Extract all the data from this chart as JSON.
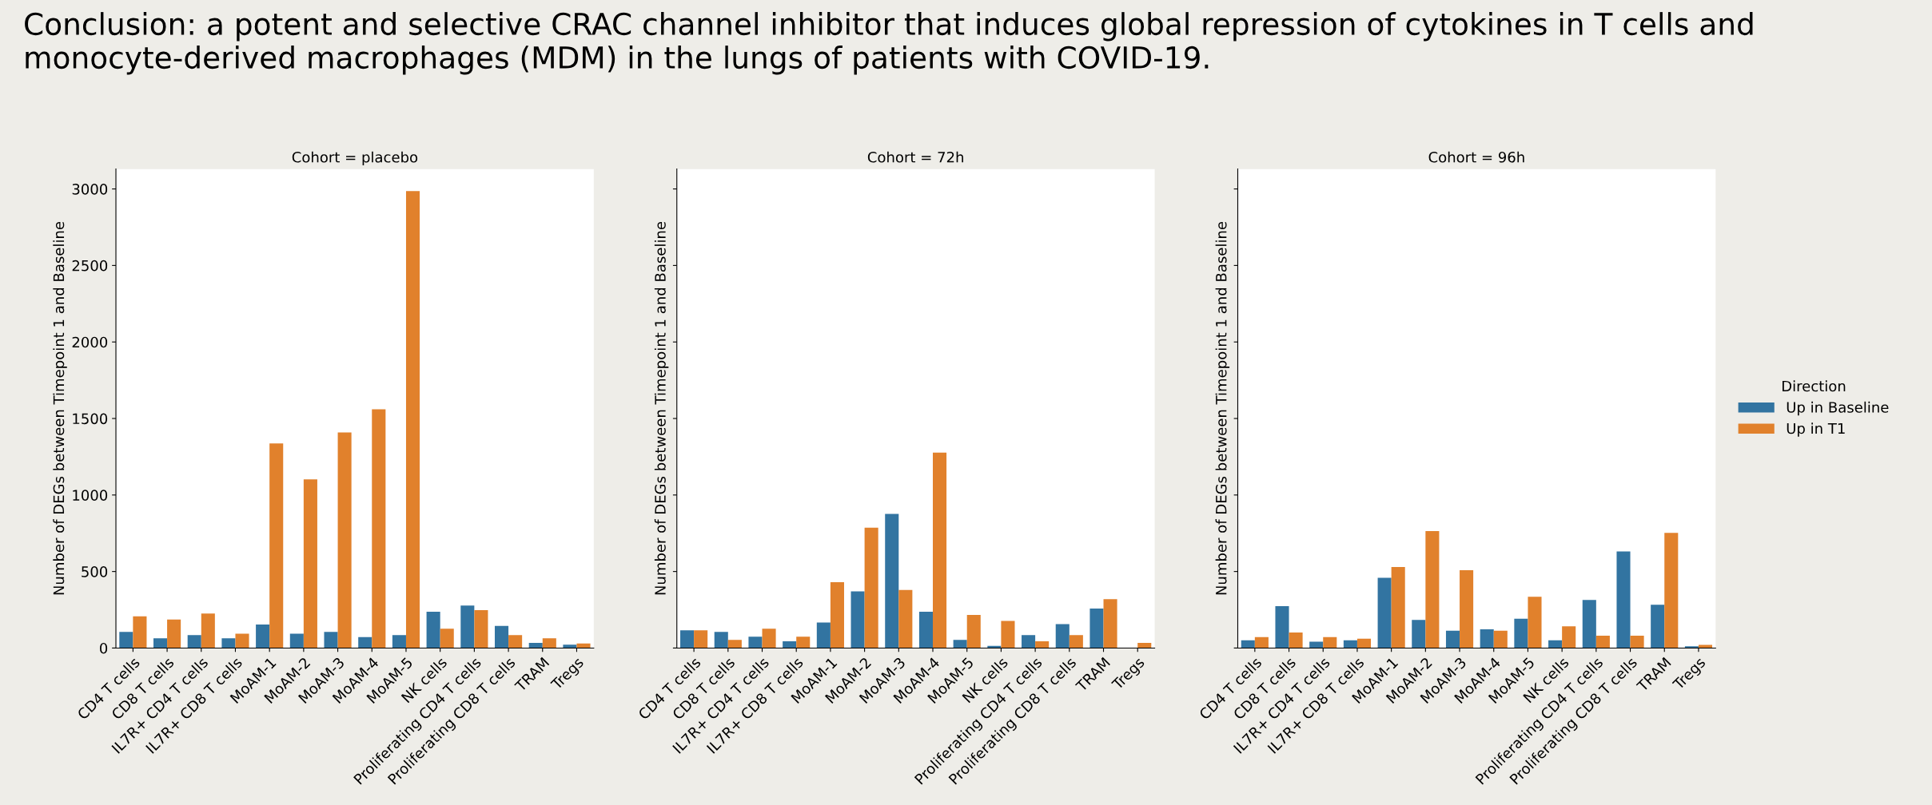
{
  "chart_data": [
    {
      "type": "bar",
      "title": "Cohort = placebo",
      "ylabel": "Number of DEGs between Timepoint 1 and Baseline",
      "legend_title": "Direction",
      "annotations": [
        "Conclusion: a potent and selective CRAC channel inhibitor that induces global repression of cytokines in T cells and monocyte-derived macrophages (MDM) in the lungs of patients with COVID-19."
      ],
      "categories": [
        "CD4 T cells",
        "CD8 T cells",
        "IL7R+ CD4 T cells",
        "IL7R+ CD8 T cells",
        "MoAM-1",
        "MoAM-2",
        "MoAM-3",
        "MoAM-4",
        "MoAM-5",
        "NK cells",
        "Proliferating CD4 T cells",
        "Proliferating CD8 T cells",
        "TRAM",
        "Tregs"
      ],
      "series": [
        {
          "name": "Up in Baseline",
          "color": "#3274a1",
          "values": [
            105,
            63,
            84,
            63,
            153,
            93,
            105,
            72,
            84,
            237,
            277,
            144,
            33,
            22
          ]
        },
        {
          "name": "Up in T1",
          "color": "#e1812c",
          "values": [
            207,
            186,
            226,
            93,
            1337,
            1102,
            1409,
            1560,
            2986,
            126,
            247,
            84,
            63,
            30
          ]
        }
      ],
      "ylim": [
        0,
        3130
      ],
      "yticks": [
        0,
        500,
        1000,
        1500,
        2000,
        2500,
        3000
      ],
      "grid": false,
      "legend": "right"
    },
    {
      "type": "bar",
      "title": "Cohort = 72h",
      "ylabel": "Number of DEGs between Timepoint 1 and Baseline",
      "categories": [
        "CD4 T cells",
        "CD8 T cells",
        "IL7R+ CD4 T cells",
        "IL7R+ CD8 T cells",
        "MoAM-1",
        "MoAM-2",
        "MoAM-3",
        "MoAM-4",
        "MoAM-5",
        "NK cells",
        "Proliferating CD4 T cells",
        "Proliferating CD8 T cells",
        "TRAM",
        "Tregs"
      ],
      "series": [
        {
          "color": "#3274a1",
          "values": [
            116,
            105,
            74,
            44,
            167,
            370,
            877,
            237,
            53,
            14,
            84,
            156,
            258,
            0
          ]
        },
        {
          "color": "#e1812c",
          "values": [
            116,
            53,
            126,
            74,
            430,
            786,
            379,
            1277,
            216,
            177,
            44,
            84,
            319,
            33
          ]
        }
      ],
      "ylim": [
        0,
        3130
      ],
      "yticks": [
        0,
        500,
        1000,
        1500,
        2000,
        2500,
        3000
      ],
      "tick_labels": "x",
      "grid": false
    },
    {
      "type": "bar",
      "title": "Cohort = 96h",
      "ylabel": "Number of DEGs between Timepoint 1 and Baseline",
      "categories": [
        "CD4 T cells",
        "CD8 T cells",
        "IL7R+ CD4 T cells",
        "IL7R+ CD8 T cells",
        "MoAM-1",
        "MoAM-2",
        "MoAM-3",
        "MoAM-4",
        "MoAM-5",
        "NK cells",
        "Proliferating CD4 T cells",
        "Proliferating CD8 T cells",
        "TRAM",
        "Tregs"
      ],
      "series": [
        {
          "color": "#3274a1",
          "values": [
            50,
            274,
            41,
            50,
            459,
            183,
            113,
            122,
            192,
            50,
            314,
            631,
            283,
            11
          ]
        },
        {
          "color": "#e1812c",
          "values": [
            72,
            102,
            72,
            61,
            529,
            764,
            509,
            113,
            335,
            142,
            81,
            81,
            753,
            20
          ]
        }
      ],
      "ylim": [
        0,
        3130
      ],
      "yticks": [
        0,
        500,
        1000,
        1500,
        2000,
        2500,
        3000
      ],
      "tick_labels": "x",
      "grid": false
    }
  ]
}
